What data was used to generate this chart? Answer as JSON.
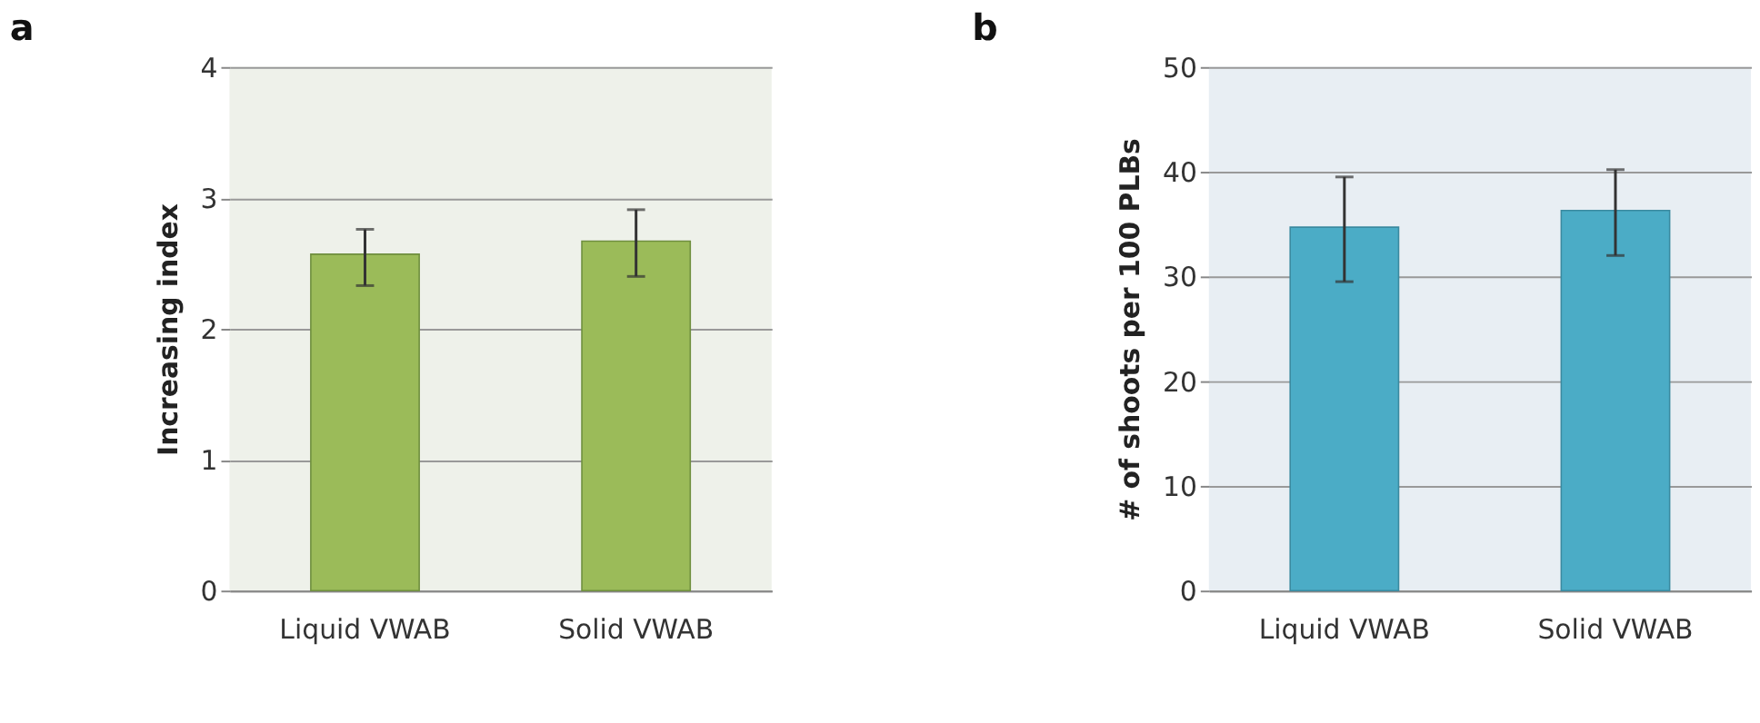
{
  "chart_data": [
    {
      "type": "bar",
      "title": "a",
      "ylabel": "Increasing index",
      "categories": [
        "Liquid VWAB",
        "Solid VWAB"
      ],
      "values": [
        2.57,
        2.67
      ],
      "color": "#9bbb59",
      "errors": [
        [
          2.33,
          2.76
        ],
        [
          2.4,
          2.91
        ]
      ],
      "ylim": [
        0,
        4
      ],
      "yticks": [
        0,
        1,
        2,
        3,
        4
      ],
      "grid": "y"
    },
    {
      "type": "bar",
      "title": "b",
      "ylabel": "# of shoots per 100 PLBs",
      "categories": [
        "Liquid VWAB",
        "Solid VWAB"
      ],
      "values": [
        34.7,
        36.3
      ],
      "color": "#4bacc6",
      "errors": [
        [
          29.5,
          39.5
        ],
        [
          32.0,
          40.2
        ]
      ],
      "ylim": [
        0,
        50
      ],
      "yticks": [
        0,
        10,
        20,
        30,
        40,
        50
      ],
      "grid": "y"
    }
  ]
}
